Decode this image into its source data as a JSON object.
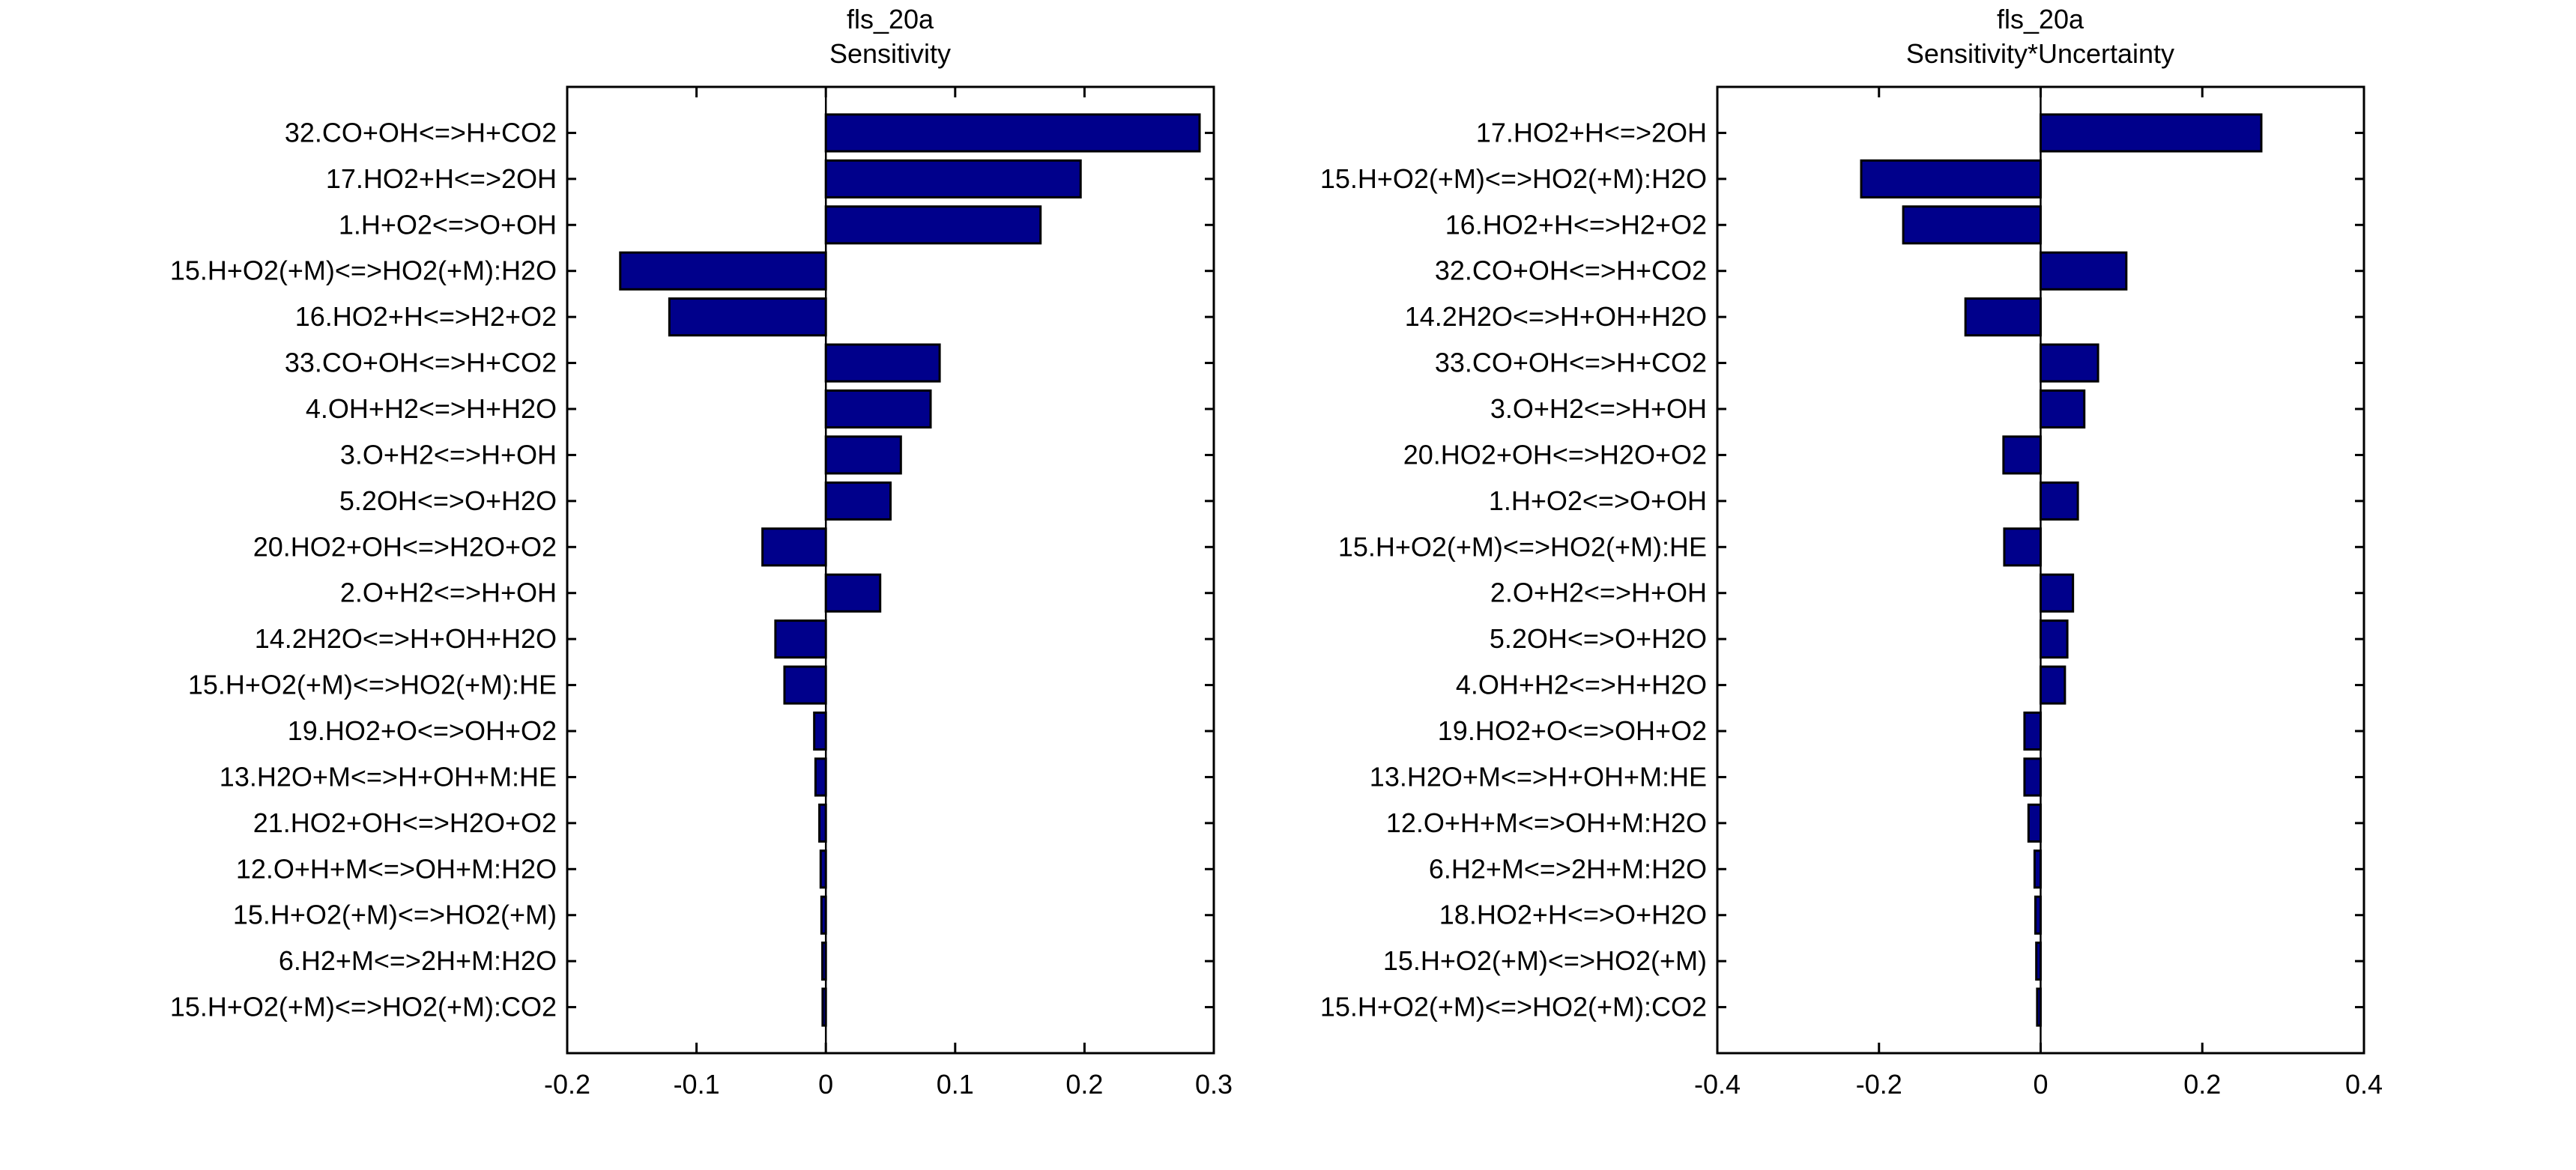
{
  "figure": {
    "background": "#ffffff",
    "bar_color": "#00008b",
    "edge_color": "#000000"
  },
  "chart_data": [
    {
      "type": "bar",
      "orientation": "horizontal",
      "title": "fls_20a",
      "subtitle": "Sensitivity",
      "xlabel": "",
      "ylabel": "",
      "xlim": [
        -0.2,
        0.3
      ],
      "xticks": [
        -0.2,
        -0.1,
        0,
        0.1,
        0.2,
        0.3
      ],
      "xtick_labels": [
        "-0.2",
        "-0.1",
        "0",
        "0.1",
        "0.2",
        "0.3"
      ],
      "grid": false,
      "categories": [
        "32.CO+OH<=>H+CO2",
        "17.HO2+H<=>2OH",
        "1.H+O2<=>O+OH",
        "15.H+O2(+M)<=>HO2(+M):H2O",
        "16.HO2+H<=>H2+O2",
        "33.CO+OH<=>H+CO2",
        "4.OH+H2<=>H+H2O",
        "3.O+H2<=>H+OH",
        "5.2OH<=>O+H2O",
        "20.HO2+OH<=>H2O+O2",
        "2.O+H2<=>H+OH",
        "14.2H2O<=>H+OH+H2O",
        "15.H+O2(+M)<=>HO2(+M):HE",
        "19.HO2+O<=>OH+O2",
        "13.H2O+M<=>H+OH+M:HE",
        "21.HO2+OH<=>H2O+O2",
        "12.O+H+M<=>OH+M:H2O",
        "15.H+O2(+M)<=>HO2(+M)",
        "6.H2+M<=>2H+M:H2O",
        "15.H+O2(+M)<=>HO2(+M):CO2"
      ],
      "values": [
        0.289,
        0.197,
        0.166,
        -0.159,
        -0.121,
        0.088,
        0.081,
        0.058,
        0.05,
        -0.049,
        0.042,
        -0.039,
        -0.032,
        -0.009,
        -0.008,
        -0.005,
        -0.004,
        -0.0034,
        -0.0027,
        -0.0025
      ]
    },
    {
      "type": "bar",
      "orientation": "horizontal",
      "title": "fls_20a",
      "subtitle": "Sensitivity*Uncertainty",
      "xlabel": "",
      "ylabel": "",
      "xlim": [
        -0.4,
        0.4
      ],
      "xticks": [
        -0.4,
        -0.2,
        0,
        0.2,
        0.4
      ],
      "xtick_labels": [
        "-0.4",
        "-0.2",
        "0",
        "0.2",
        "0.4"
      ],
      "grid": false,
      "categories": [
        "17.HO2+H<=>2OH",
        "15.H+O2(+M)<=>HO2(+M):H2O",
        "16.HO2+H<=>H2+O2",
        "32.CO+OH<=>H+CO2",
        "14.2H2O<=>H+OH+H2O",
        "33.CO+OH<=>H+CO2",
        "3.O+H2<=>H+OH",
        "20.HO2+OH<=>H2O+O2",
        "1.H+O2<=>O+OH",
        "15.H+O2(+M)<=>HO2(+M):HE",
        "2.O+H2<=>H+OH",
        "5.2OH<=>O+H2O",
        "4.OH+H2<=>H+H2O",
        "19.HO2+O<=>OH+O2",
        "13.H2O+M<=>H+OH+M:HE",
        "12.O+H+M<=>OH+M:H2O",
        "6.H2+M<=>2H+M:H2O",
        "18.HO2+H<=>O+H2O",
        "15.H+O2(+M)<=>HO2(+M)",
        "15.H+O2(+M)<=>HO2(+M):CO2"
      ],
      "values": [
        0.273,
        -0.222,
        -0.17,
        0.106,
        -0.093,
        0.071,
        0.054,
        -0.046,
        0.046,
        -0.045,
        0.04,
        0.033,
        0.03,
        -0.02,
        -0.02,
        -0.015,
        -0.0075,
        -0.0065,
        -0.0054,
        -0.0043
      ]
    }
  ]
}
